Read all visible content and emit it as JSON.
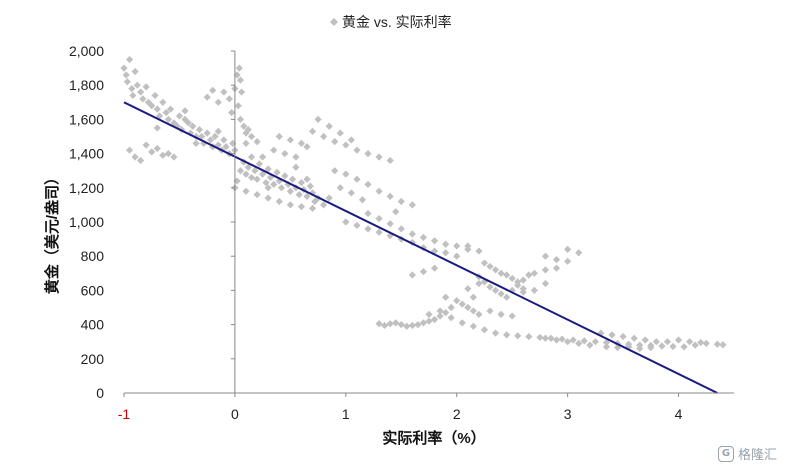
{
  "chart_data": {
    "type": "scatter",
    "title": "",
    "legend": {
      "position": "top-center",
      "entries": [
        {
          "name": "黄金 vs. 实际利率",
          "marker": "diamond",
          "color": "#c0c0c0"
        }
      ]
    },
    "xlabel": "实际利率（%）",
    "ylabel": "黄金（美元/盎司）",
    "xlim": [
      -1,
      4.5
    ],
    "ylim": [
      0,
      2000
    ],
    "xticks": [
      -1,
      0,
      1,
      2,
      3,
      4
    ],
    "xtick_labels": [
      "-1",
      "0",
      "1",
      "2",
      "3",
      "4"
    ],
    "xtick_colors": [
      "#cc0000",
      "#222222",
      "#222222",
      "#222222",
      "#222222",
      "#222222"
    ],
    "yticks": [
      0,
      200,
      400,
      600,
      800,
      1000,
      1200,
      1400,
      1600,
      1800,
      2000
    ],
    "ytick_labels": [
      "0",
      "200",
      "400",
      "600",
      "800",
      "1,000",
      "1,200",
      "1,400",
      "1,600",
      "1,800",
      "2,000"
    ],
    "grid": false,
    "series": [
      {
        "name": "黄金 vs. 实际利率",
        "kind": "scatter",
        "color": "#c0c0c0",
        "points": [
          [
            -1.0,
            1900
          ],
          [
            -0.98,
            1860
          ],
          [
            -0.97,
            1820
          ],
          [
            -0.95,
            1950
          ],
          [
            -0.93,
            1780
          ],
          [
            -0.92,
            1740
          ],
          [
            -0.9,
            1880
          ],
          [
            -0.88,
            1800
          ],
          [
            -0.85,
            1760
          ],
          [
            -0.83,
            1720
          ],
          [
            -0.8,
            1790
          ],
          [
            -0.78,
            1700
          ],
          [
            -0.75,
            1680
          ],
          [
            -0.72,
            1740
          ],
          [
            -0.7,
            1660
          ],
          [
            -0.68,
            1620
          ],
          [
            -0.65,
            1700
          ],
          [
            -0.62,
            1640
          ],
          [
            -0.6,
            1600
          ],
          [
            -0.58,
            1660
          ],
          [
            -0.55,
            1580
          ],
          [
            -0.52,
            1560
          ],
          [
            -0.5,
            1620
          ],
          [
            -0.48,
            1540
          ],
          [
            -0.45,
            1600
          ],
          [
            -0.42,
            1580
          ],
          [
            -0.4,
            1520
          ],
          [
            -0.38,
            1560
          ],
          [
            -0.35,
            1500
          ],
          [
            -0.32,
            1540
          ],
          [
            -0.3,
            1500
          ],
          [
            -0.28,
            1460
          ],
          [
            -0.25,
            1520
          ],
          [
            -0.22,
            1480
          ],
          [
            -0.2,
            1440
          ],
          [
            -0.18,
            1500
          ],
          [
            -0.15,
            1450
          ],
          [
            -0.12,
            1420
          ],
          [
            -0.1,
            1480
          ],
          [
            -0.08,
            1440
          ],
          [
            -0.05,
            1400
          ],
          [
            -0.02,
            1460
          ],
          [
            0.0,
            1420
          ],
          [
            -0.95,
            1420
          ],
          [
            -0.9,
            1380
          ],
          [
            -0.85,
            1360
          ],
          [
            -0.8,
            1450
          ],
          [
            -0.75,
            1410
          ],
          [
            -0.7,
            1430
          ],
          [
            -0.65,
            1390
          ],
          [
            -0.6,
            1400
          ],
          [
            -0.55,
            1380
          ],
          [
            -0.25,
            1730
          ],
          [
            -0.2,
            1770
          ],
          [
            -0.15,
            1700
          ],
          [
            -0.1,
            1760
          ],
          [
            -0.05,
            1720
          ],
          [
            0.0,
            1780
          ],
          [
            0.02,
            1860
          ],
          [
            0.04,
            1900
          ],
          [
            0.05,
            1830
          ],
          [
            0.06,
            1760
          ],
          [
            0.03,
            1680
          ],
          [
            -0.03,
            1640
          ],
          [
            0.05,
            1600
          ],
          [
            0.08,
            1560
          ],
          [
            0.1,
            1520
          ],
          [
            0.12,
            1540
          ],
          [
            0.15,
            1500
          ],
          [
            0.02,
            1240
          ],
          [
            0.05,
            1300
          ],
          [
            0.08,
            1350
          ],
          [
            0.1,
            1280
          ],
          [
            0.12,
            1320
          ],
          [
            0.15,
            1260
          ],
          [
            0.18,
            1300
          ],
          [
            0.2,
            1250
          ],
          [
            0.22,
            1340
          ],
          [
            0.25,
            1280
          ],
          [
            0.28,
            1230
          ],
          [
            0.3,
            1310
          ],
          [
            0.32,
            1260
          ],
          [
            0.35,
            1220
          ],
          [
            0.38,
            1290
          ],
          [
            0.4,
            1240
          ],
          [
            0.42,
            1200
          ],
          [
            0.45,
            1270
          ],
          [
            0.48,
            1220
          ],
          [
            0.5,
            1180
          ],
          [
            0.52,
            1250
          ],
          [
            0.55,
            1200
          ],
          [
            0.58,
            1160
          ],
          [
            0.6,
            1230
          ],
          [
            0.62,
            1190
          ],
          [
            0.65,
            1150
          ],
          [
            0.68,
            1210
          ],
          [
            0.7,
            1170
          ],
          [
            0.72,
            1120
          ],
          [
            0.75,
            1140
          ],
          [
            0.0,
            1200
          ],
          [
            0.1,
            1180
          ],
          [
            0.2,
            1160
          ],
          [
            0.3,
            1140
          ],
          [
            0.4,
            1120
          ],
          [
            0.5,
            1100
          ],
          [
            0.6,
            1090
          ],
          [
            0.7,
            1080
          ],
          [
            0.8,
            1100
          ],
          [
            0.85,
            1140
          ],
          [
            0.25,
            1380
          ],
          [
            0.35,
            1420
          ],
          [
            0.45,
            1400
          ],
          [
            0.55,
            1380
          ],
          [
            0.65,
            1440
          ],
          [
            0.4,
            1500
          ],
          [
            0.5,
            1480
          ],
          [
            0.6,
            1460
          ],
          [
            0.7,
            1530
          ],
          [
            0.8,
            1500
          ],
          [
            0.9,
            1470
          ],
          [
            1.0,
            1450
          ],
          [
            1.1,
            1420
          ],
          [
            1.2,
            1400
          ],
          [
            1.3,
            1380
          ],
          [
            1.4,
            1360
          ],
          [
            0.75,
            1600
          ],
          [
            0.85,
            1560
          ],
          [
            0.95,
            1520
          ],
          [
            1.05,
            1480
          ],
          [
            0.9,
            1300
          ],
          [
            1.0,
            1280
          ],
          [
            1.1,
            1250
          ],
          [
            1.2,
            1220
          ],
          [
            1.3,
            1180
          ],
          [
            1.4,
            1150
          ],
          [
            1.5,
            1120
          ],
          [
            1.6,
            1100
          ],
          [
            1.2,
            1050
          ],
          [
            1.3,
            1020
          ],
          [
            1.4,
            990
          ],
          [
            1.5,
            960
          ],
          [
            1.6,
            930
          ],
          [
            1.7,
            910
          ],
          [
            1.8,
            890
          ],
          [
            1.9,
            870
          ],
          [
            2.0,
            860
          ],
          [
            2.1,
            840
          ],
          [
            1.0,
            1000
          ],
          [
            1.1,
            980
          ],
          [
            1.2,
            960
          ],
          [
            1.3,
            940
          ],
          [
            1.4,
            920
          ],
          [
            1.5,
            900
          ],
          [
            1.6,
            880
          ],
          [
            1.7,
            850
          ],
          [
            1.8,
            830
          ],
          [
            1.9,
            820
          ],
          [
            2.0,
            800
          ],
          [
            2.1,
            860
          ],
          [
            2.2,
            830
          ],
          [
            2.25,
            760
          ],
          [
            2.3,
            740
          ],
          [
            2.35,
            720
          ],
          [
            2.4,
            700
          ],
          [
            2.45,
            690
          ],
          [
            2.5,
            670
          ],
          [
            2.55,
            650
          ],
          [
            2.6,
            660
          ],
          [
            2.65,
            690
          ],
          [
            2.2,
            680
          ],
          [
            2.25,
            650
          ],
          [
            2.3,
            620
          ],
          [
            2.35,
            600
          ],
          [
            2.4,
            580
          ],
          [
            2.45,
            560
          ],
          [
            2.5,
            600
          ],
          [
            2.55,
            630
          ],
          [
            2.6,
            610
          ],
          [
            2.7,
            700
          ],
          [
            2.8,
            720
          ],
          [
            2.9,
            730
          ],
          [
            3.0,
            770
          ],
          [
            3.1,
            820
          ],
          [
            2.8,
            800
          ],
          [
            2.9,
            780
          ],
          [
            3.0,
            840
          ],
          [
            2.0,
            540
          ],
          [
            2.05,
            520
          ],
          [
            2.1,
            500
          ],
          [
            2.15,
            480
          ],
          [
            2.2,
            460
          ],
          [
            1.95,
            500
          ],
          [
            1.9,
            470
          ],
          [
            1.85,
            450
          ],
          [
            1.8,
            430
          ],
          [
            1.75,
            420
          ],
          [
            1.7,
            410
          ],
          [
            1.65,
            400
          ],
          [
            1.6,
            395
          ],
          [
            1.55,
            390
          ],
          [
            1.5,
            400
          ],
          [
            1.45,
            410
          ],
          [
            1.4,
            405
          ],
          [
            1.35,
            395
          ],
          [
            1.3,
            405
          ],
          [
            1.75,
            460
          ],
          [
            1.85,
            480
          ],
          [
            1.95,
            440
          ],
          [
            2.05,
            410
          ],
          [
            2.15,
            390
          ],
          [
            2.25,
            370
          ],
          [
            2.35,
            350
          ],
          [
            2.45,
            340
          ],
          [
            2.55,
            335
          ],
          [
            2.65,
            330
          ],
          [
            2.75,
            325
          ],
          [
            2.85,
            320
          ],
          [
            2.95,
            315
          ],
          [
            3.05,
            310
          ],
          [
            3.15,
            305
          ],
          [
            3.25,
            300
          ],
          [
            3.35,
            295
          ],
          [
            3.45,
            290
          ],
          [
            3.55,
            285
          ],
          [
            3.65,
            280
          ],
          [
            3.75,
            278
          ],
          [
            3.85,
            275
          ],
          [
            3.95,
            272
          ],
          [
            4.05,
            270
          ],
          [
            4.15,
            280
          ],
          [
            4.25,
            290
          ],
          [
            4.35,
            285
          ],
          [
            4.4,
            282
          ],
          [
            3.3,
            350
          ],
          [
            3.4,
            340
          ],
          [
            3.5,
            330
          ],
          [
            3.6,
            320
          ],
          [
            3.7,
            310
          ],
          [
            3.8,
            300
          ],
          [
            3.9,
            300
          ],
          [
            4.0,
            310
          ],
          [
            4.1,
            300
          ],
          [
            4.2,
            295
          ],
          [
            3.2,
            280
          ],
          [
            3.1,
            290
          ],
          [
            3.0,
            300
          ],
          [
            2.9,
            310
          ],
          [
            2.8,
            320
          ],
          [
            3.35,
            270
          ],
          [
            3.45,
            265
          ],
          [
            3.55,
            270
          ],
          [
            3.65,
            260
          ],
          [
            3.75,
            265
          ],
          [
            1.6,
            690
          ],
          [
            1.7,
            710
          ],
          [
            1.8,
            730
          ],
          [
            2.6,
            590
          ],
          [
            2.7,
            600
          ],
          [
            2.8,
            640
          ],
          [
            2.3,
            480
          ],
          [
            2.4,
            460
          ],
          [
            2.5,
            450
          ],
          [
            2.1,
            610
          ],
          [
            2.2,
            640
          ],
          [
            2.15,
            560
          ],
          [
            1.9,
            560
          ],
          [
            0.15,
            1380
          ],
          [
            0.3,
            1200
          ],
          [
            0.55,
            1320
          ],
          [
            0.65,
            1250
          ],
          [
            -0.7,
            1550
          ],
          [
            -0.45,
            1650
          ],
          [
            -0.35,
            1460
          ],
          [
            -0.15,
            1530
          ],
          [
            0.1,
            1460
          ],
          [
            0.2,
            1470
          ],
          [
            0.95,
            1200
          ],
          [
            1.05,
            1170
          ],
          [
            1.15,
            1130
          ],
          [
            1.45,
            1060
          ]
        ]
      },
      {
        "name": "",
        "kind": "trendline",
        "color": "#1a1a80",
        "points": [
          [
            -1,
            1700
          ],
          [
            4.35,
            0
          ]
        ]
      }
    ]
  },
  "watermark": {
    "logo": "G",
    "text": "格隆汇"
  }
}
